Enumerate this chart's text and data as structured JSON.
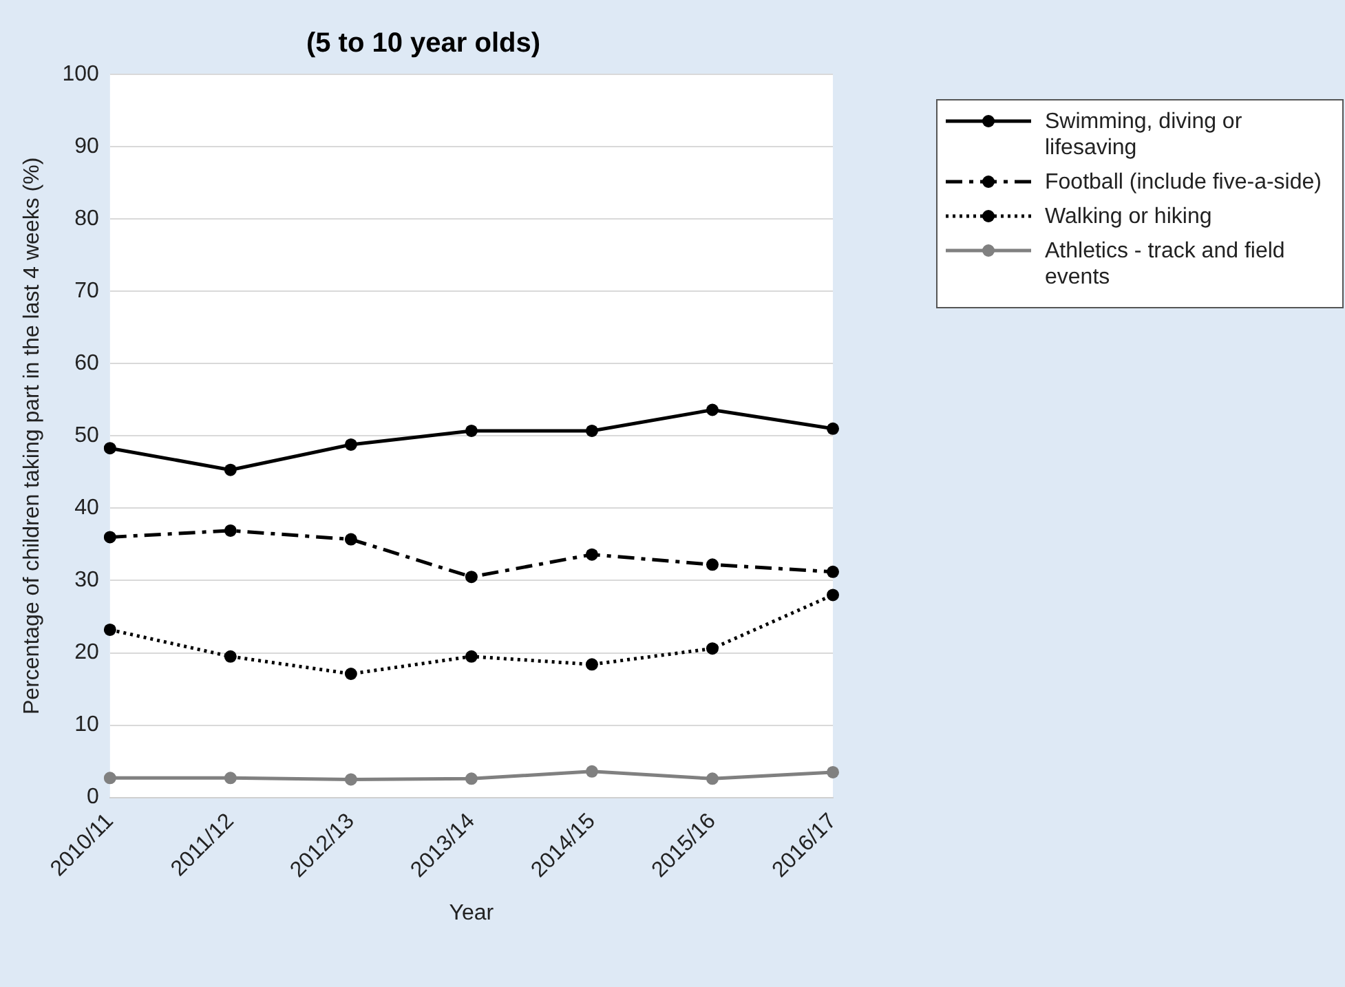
{
  "chart_data": {
    "type": "line",
    "title": "(5 to 10 year olds)",
    "xlabel": "Year",
    "ylabel": "Percentage of children taking part in the last 4 weeks (%)",
    "categories": [
      "2010/11",
      "2011/12",
      "2012/13",
      "2013/14",
      "2014/15",
      "2015/16",
      "2016/17"
    ],
    "series": [
      {
        "name": "Swimming, diving or lifesaving",
        "color": "#000000",
        "line_style": "solid",
        "values": [
          48.3,
          45.3,
          48.8,
          50.7,
          50.7,
          53.6,
          51.0
        ]
      },
      {
        "name": "Football (include five-a-side)",
        "color": "#000000",
        "line_style": "dashed",
        "values": [
          36.0,
          36.9,
          35.7,
          30.5,
          33.6,
          32.2,
          31.2
        ]
      },
      {
        "name": "Walking or hiking",
        "color": "#000000",
        "line_style": "dotted",
        "values": [
          23.2,
          19.5,
          17.1,
          19.5,
          18.4,
          20.6,
          28.0
        ]
      },
      {
        "name": "Athletics - track and field events",
        "color": "#808080",
        "line_style": "solid",
        "values": [
          2.7,
          2.7,
          2.5,
          2.6,
          3.6,
          2.6,
          3.5
        ]
      }
    ],
    "ylim": [
      0,
      100
    ],
    "yticks": [
      0,
      10,
      20,
      30,
      40,
      50,
      60,
      70,
      80,
      90,
      100
    ],
    "grid": "y",
    "legend": "right",
    "marker": "circle"
  }
}
